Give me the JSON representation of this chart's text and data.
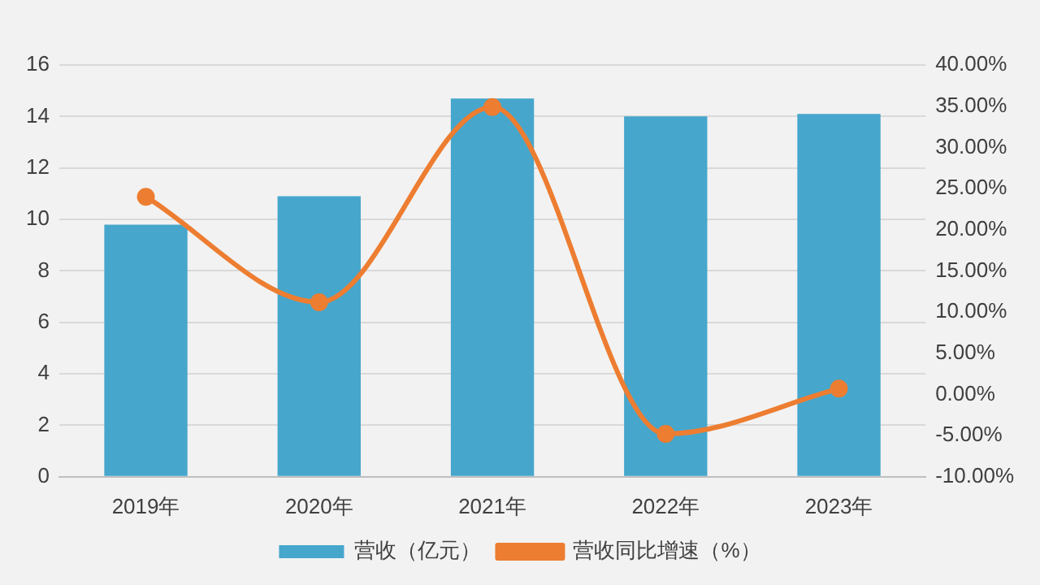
{
  "chart_data": {
    "type": "bar",
    "categories": [
      "2019年",
      "2020年",
      "2021年",
      "2022年",
      "2023年"
    ],
    "series": [
      {
        "name": "营收（亿元）",
        "color": "#46a6cc",
        "values": [
          9.8,
          10.9,
          14.7,
          14.0,
          14.1
        ]
      },
      {
        "name": "营收同比增速（%）",
        "type": "line",
        "axis": "y2",
        "color": "#ed7d31",
        "marker": "circle",
        "values": [
          24,
          11.2,
          34.9,
          -4.8,
          0.7
        ]
      }
    ],
    "ylim": [
      0,
      16
    ],
    "yticks": [
      0,
      2,
      4,
      6,
      8,
      10,
      12,
      14,
      16
    ],
    "y2lim": [
      -10,
      40
    ],
    "y2ticks": [
      {
        "value": -10,
        "label": "-10.00%"
      },
      {
        "value": -5,
        "label": "-5.00%"
      },
      {
        "value": 0,
        "label": "0.00%"
      },
      {
        "value": 5,
        "label": "5.00%"
      },
      {
        "value": 10,
        "label": "10.00%"
      },
      {
        "value": 15,
        "label": "15.00%"
      },
      {
        "value": 20,
        "label": "20.00%"
      },
      {
        "value": 25,
        "label": "25.00%"
      },
      {
        "value": 30,
        "label": "30.00%"
      },
      {
        "value": 35,
        "label": "35.00%"
      },
      {
        "value": 40,
        "label": "40.00%"
      }
    ],
    "grid": "y",
    "legend": "bottom"
  }
}
